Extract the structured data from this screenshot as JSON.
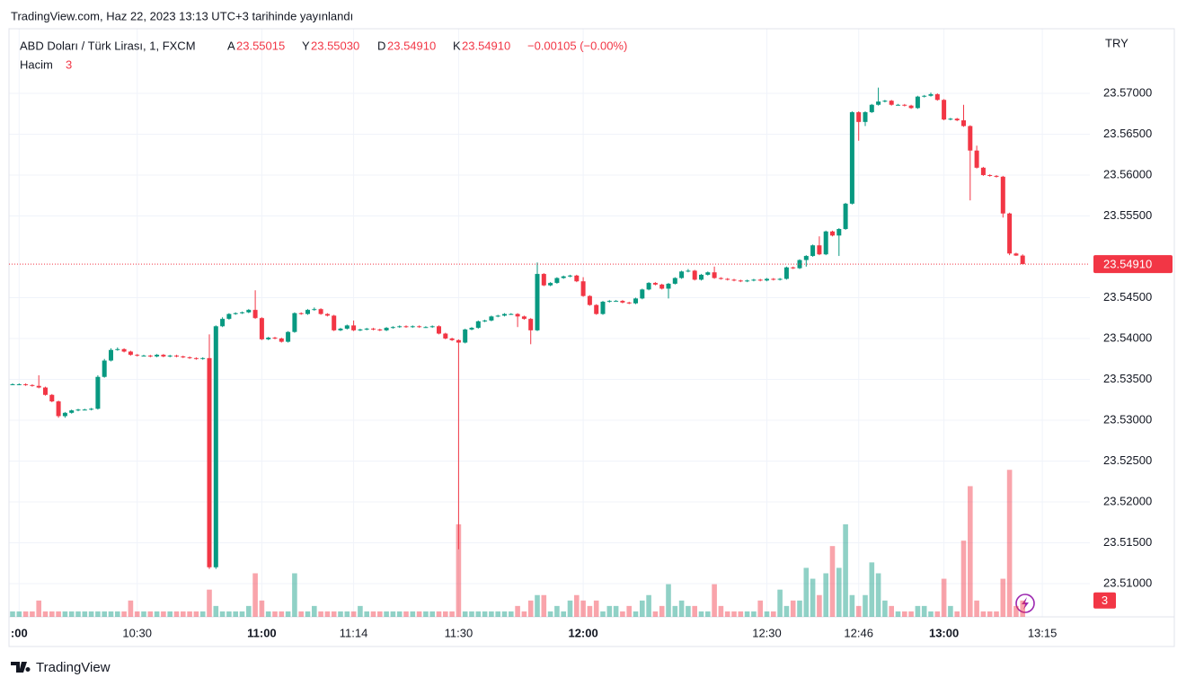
{
  "header": {
    "publish_note": "TradingView.com, Haz 22, 2023 13:13 UTC+3 tarihinde yayınlandı"
  },
  "legend": {
    "symbol": "ABD Doları / Türk Lirası, 1, FXCM",
    "open_label": "A",
    "open": "23.55015",
    "high_label": "Y",
    "high": "23.55030",
    "low_label": "D",
    "low": "23.54910",
    "close_label": "K",
    "close": "23.54910",
    "change": "−0.00105 (−0.00%)",
    "volume_label": "Hacim"
  },
  "footer": {
    "brand": "TradingView"
  },
  "chart_data": {
    "type": "candlestick",
    "currency": "TRY",
    "up_color": "#089981",
    "down_color": "#f23645",
    "grid": true,
    "ylim": [
      23.50593,
      23.57791
    ],
    "yticks": [
      {
        "value": 23.51,
        "label": "23.51000"
      },
      {
        "value": 23.515,
        "label": "23.51500"
      },
      {
        "value": 23.52,
        "label": "23.52000"
      },
      {
        "value": 23.525,
        "label": "23.52500"
      },
      {
        "value": 23.53,
        "label": "23.53000"
      },
      {
        "value": 23.535,
        "label": "23.53500"
      },
      {
        "value": 23.54,
        "label": "23.54000"
      },
      {
        "value": 23.545,
        "label": "23.54500"
      },
      {
        "value": 23.555,
        "label": "23.55500"
      },
      {
        "value": 23.56,
        "label": "23.56000"
      },
      {
        "value": 23.565,
        "label": "23.56500"
      },
      {
        "value": 23.57,
        "label": "23.57000"
      }
    ],
    "xticks": [
      {
        "value": 1,
        "label": ":00"
      },
      {
        "value": 19,
        "label": "10:30"
      },
      {
        "value": 38,
        "label": "11:00"
      },
      {
        "value": 52,
        "label": "11:14"
      },
      {
        "value": 68,
        "label": "11:30"
      },
      {
        "value": 87,
        "label": "12:00"
      },
      {
        "value": 115,
        "label": "12:30"
      },
      {
        "value": 129,
        "label": "12:46"
      },
      {
        "value": 142,
        "label": "13:00"
      },
      {
        "value": 157,
        "label": "13:15"
      }
    ],
    "last_price": {
      "value": 23.5491,
      "label": "23.54910"
    },
    "ohlc": [
      [
        23.5344,
        23.5345,
        23.5343,
        23.5344
      ],
      [
        23.5344,
        23.5345,
        23.5343,
        23.5344
      ],
      [
        23.5344,
        23.5345,
        23.5342,
        23.5343
      ],
      [
        23.5343,
        23.5344,
        23.5341,
        23.5342
      ],
      [
        23.5342,
        23.5355,
        23.5339,
        23.534
      ],
      [
        23.534,
        23.5341,
        23.533,
        23.5331
      ],
      [
        23.5331,
        23.5332,
        23.5322,
        23.5323
      ],
      [
        23.5323,
        23.5324,
        23.5303,
        23.5305
      ],
      [
        23.5305,
        23.531,
        23.5303,
        23.5309
      ],
      [
        23.5309,
        23.5313,
        23.5308,
        23.5312
      ],
      [
        23.5312,
        23.5314,
        23.5311,
        23.5313
      ],
      [
        23.5313,
        23.5314,
        23.5312,
        23.5313
      ],
      [
        23.5313,
        23.5315,
        23.5312,
        23.5314
      ],
      [
        23.5314,
        23.5355,
        23.5313,
        23.5353
      ],
      [
        23.5353,
        23.5375,
        23.5352,
        23.5373
      ],
      [
        23.5373,
        23.5388,
        23.5372,
        23.5386
      ],
      [
        23.5386,
        23.5389,
        23.5385,
        23.5387
      ],
      [
        23.5387,
        23.5388,
        23.5383,
        23.5384
      ],
      [
        23.5384,
        23.5385,
        23.5379,
        23.538
      ],
      [
        23.538,
        23.5381,
        23.5378,
        23.5379
      ],
      [
        23.5379,
        23.538,
        23.5378,
        23.5379
      ],
      [
        23.5379,
        23.538,
        23.5377,
        23.5378
      ],
      [
        23.5378,
        23.5381,
        23.5377,
        23.538
      ],
      [
        23.538,
        23.5381,
        23.5377,
        23.5378
      ],
      [
        23.5378,
        23.538,
        23.5377,
        23.5379
      ],
      [
        23.5379,
        23.538,
        23.5377,
        23.5378
      ],
      [
        23.5378,
        23.5379,
        23.5376,
        23.5377
      ],
      [
        23.5377,
        23.5378,
        23.5375,
        23.5376
      ],
      [
        23.5376,
        23.5377,
        23.5374,
        23.5375
      ],
      [
        23.5375,
        23.5377,
        23.5374,
        23.5376
      ],
      [
        23.5376,
        23.5405,
        23.5118,
        23.512
      ],
      [
        23.512,
        23.5416,
        23.5118,
        23.5415
      ],
      [
        23.5415,
        23.5426,
        23.5414,
        23.5424
      ],
      [
        23.5424,
        23.5431,
        23.5423,
        23.543
      ],
      [
        23.543,
        23.5432,
        23.5429,
        23.5431
      ],
      [
        23.5431,
        23.5433,
        23.543,
        23.5432
      ],
      [
        23.5432,
        23.5436,
        23.5431,
        23.5435
      ],
      [
        23.5435,
        23.5459,
        23.5424,
        23.5425
      ],
      [
        23.5425,
        23.5426,
        23.5398,
        23.5399
      ],
      [
        23.5399,
        23.5402,
        23.5398,
        23.5401
      ],
      [
        23.5401,
        23.5402,
        23.5399,
        23.54
      ],
      [
        23.54,
        23.5401,
        23.5395,
        23.5396
      ],
      [
        23.5396,
        23.5409,
        23.5395,
        23.5408
      ],
      [
        23.5408,
        23.5432,
        23.5407,
        23.5431
      ],
      [
        23.5431,
        23.5432,
        23.5429,
        23.543
      ],
      [
        23.543,
        23.5436,
        23.5429,
        23.5435
      ],
      [
        23.5435,
        23.5438,
        23.5434,
        23.5436
      ],
      [
        23.5436,
        23.5437,
        23.5429,
        23.543
      ],
      [
        23.543,
        23.5431,
        23.5427,
        23.5428
      ],
      [
        23.5428,
        23.5429,
        23.5409,
        23.541
      ],
      [
        23.541,
        23.5413,
        23.5409,
        23.5412
      ],
      [
        23.5412,
        23.5417,
        23.5411,
        23.5416
      ],
      [
        23.5416,
        23.5422,
        23.5409,
        23.541
      ],
      [
        23.541,
        23.5412,
        23.5409,
        23.5411
      ],
      [
        23.5411,
        23.5413,
        23.541,
        23.5412
      ],
      [
        23.5412,
        23.5413,
        23.541,
        23.5411
      ],
      [
        23.5411,
        23.5412,
        23.5409,
        23.541
      ],
      [
        23.541,
        23.5414,
        23.5409,
        23.5413
      ],
      [
        23.5413,
        23.5415,
        23.5412,
        23.5414
      ],
      [
        23.5414,
        23.5416,
        23.5413,
        23.5415
      ],
      [
        23.5415,
        23.5416,
        23.5413,
        23.5414
      ],
      [
        23.5414,
        23.5416,
        23.5413,
        23.5415
      ],
      [
        23.5415,
        23.5416,
        23.5413,
        23.5414
      ],
      [
        23.5414,
        23.5415,
        23.5413,
        23.5414
      ],
      [
        23.5414,
        23.5416,
        23.5413,
        23.5415
      ],
      [
        23.5415,
        23.5416,
        23.5405,
        23.5406
      ],
      [
        23.5406,
        23.5407,
        23.5399,
        23.54
      ],
      [
        23.54,
        23.5401,
        23.5397,
        23.5398
      ],
      [
        23.5398,
        23.5399,
        23.5142,
        23.5395
      ],
      [
        23.5395,
        23.5412,
        23.5394,
        23.5411
      ],
      [
        23.5411,
        23.5414,
        23.541,
        23.5413
      ],
      [
        23.5413,
        23.5422,
        23.5412,
        23.5421
      ],
      [
        23.5421,
        23.5423,
        23.542,
        23.5422
      ],
      [
        23.5422,
        23.5428,
        23.5421,
        23.5427
      ],
      [
        23.5427,
        23.5429,
        23.5426,
        23.5428
      ],
      [
        23.5428,
        23.5431,
        23.5427,
        23.543
      ],
      [
        23.543,
        23.5431,
        23.5429,
        23.543
      ],
      [
        23.543,
        23.5431,
        23.5414,
        23.5427
      ],
      [
        23.5427,
        23.5428,
        23.5423,
        23.5424
      ],
      [
        23.5424,
        23.5425,
        23.5393,
        23.541
      ],
      [
        23.541,
        23.5493,
        23.5409,
        23.5479
      ],
      [
        23.5479,
        23.548,
        23.5464,
        23.5465
      ],
      [
        23.5465,
        23.5469,
        23.5464,
        23.5468
      ],
      [
        23.5468,
        23.5475,
        23.5467,
        23.5474
      ],
      [
        23.5474,
        23.5477,
        23.5473,
        23.5476
      ],
      [
        23.5476,
        23.5478,
        23.5475,
        23.5477
      ],
      [
        23.5477,
        23.5478,
        23.5469,
        23.547
      ],
      [
        23.547,
        23.5475,
        23.5451,
        23.5452
      ],
      [
        23.5452,
        23.5453,
        23.544,
        23.5441
      ],
      [
        23.5441,
        23.5442,
        23.5429,
        23.543
      ],
      [
        23.543,
        23.5446,
        23.5429,
        23.5445
      ],
      [
        23.5445,
        23.5447,
        23.5444,
        23.5446
      ],
      [
        23.5446,
        23.5447,
        23.5445,
        23.5446
      ],
      [
        23.5446,
        23.5447,
        23.5443,
        23.5444
      ],
      [
        23.5444,
        23.5445,
        23.5442,
        23.5443
      ],
      [
        23.5443,
        23.545,
        23.5442,
        23.5449
      ],
      [
        23.5449,
        23.5461,
        23.5448,
        23.546
      ],
      [
        23.546,
        23.5469,
        23.5459,
        23.5468
      ],
      [
        23.5468,
        23.5469,
        23.5465,
        23.5466
      ],
      [
        23.5466,
        23.5467,
        23.546,
        23.5461
      ],
      [
        23.5461,
        23.5468,
        23.5449,
        23.5467
      ],
      [
        23.5467,
        23.5475,
        23.5466,
        23.5474
      ],
      [
        23.5474,
        23.5483,
        23.5473,
        23.5482
      ],
      [
        23.5482,
        23.5485,
        23.5481,
        23.5483
      ],
      [
        23.5483,
        23.5484,
        23.5471,
        23.5472
      ],
      [
        23.5472,
        23.5479,
        23.5471,
        23.5478
      ],
      [
        23.5478,
        23.5482,
        23.5477,
        23.5481
      ],
      [
        23.5481,
        23.5488,
        23.5473,
        23.5474
      ],
      [
        23.5474,
        23.5475,
        23.5472,
        23.5473
      ],
      [
        23.5473,
        23.5474,
        23.5471,
        23.5472
      ],
      [
        23.5472,
        23.5473,
        23.547,
        23.5471
      ],
      [
        23.5471,
        23.5472,
        23.5469,
        23.547
      ],
      [
        23.547,
        23.5472,
        23.5469,
        23.5471
      ],
      [
        23.5471,
        23.5473,
        23.547,
        23.5472
      ],
      [
        23.5472,
        23.5473,
        23.547,
        23.5471
      ],
      [
        23.5471,
        23.5474,
        23.547,
        23.5473
      ],
      [
        23.5473,
        23.5474,
        23.5471,
        23.5472
      ],
      [
        23.5472,
        23.5474,
        23.5471,
        23.5473
      ],
      [
        23.5473,
        23.5488,
        23.5472,
        23.5487
      ],
      [
        23.5487,
        23.5488,
        23.5485,
        23.5486
      ],
      [
        23.5486,
        23.5497,
        23.5485,
        23.5496
      ],
      [
        23.5496,
        23.5502,
        23.5488,
        23.5501
      ],
      [
        23.5501,
        23.5515,
        23.55,
        23.5514
      ],
      [
        23.5514,
        23.5525,
        23.5502,
        23.5503
      ],
      [
        23.5503,
        23.5532,
        23.5502,
        23.5531
      ],
      [
        23.5531,
        23.5532,
        23.5525,
        23.5526
      ],
      [
        23.5526,
        23.5535,
        23.5501,
        23.5534
      ],
      [
        23.5534,
        23.5566,
        23.5533,
        23.5565
      ],
      [
        23.5565,
        23.5678,
        23.5564,
        23.5677
      ],
      [
        23.5677,
        23.5678,
        23.5642,
        23.5665
      ],
      [
        23.5665,
        23.5678,
        23.566,
        23.5677
      ],
      [
        23.5677,
        23.5687,
        23.5676,
        23.5686
      ],
      [
        23.5686,
        23.5707,
        23.5685,
        23.569
      ],
      [
        23.569,
        23.5692,
        23.5689,
        23.5691
      ],
      [
        23.5691,
        23.5692,
        23.5685,
        23.5686
      ],
      [
        23.5686,
        23.5687,
        23.5685,
        23.5686
      ],
      [
        23.5686,
        23.5687,
        23.5684,
        23.5685
      ],
      [
        23.5685,
        23.5686,
        23.5681,
        23.5682
      ],
      [
        23.5682,
        23.5697,
        23.5681,
        23.5696
      ],
      [
        23.5696,
        23.5698,
        23.5695,
        23.5697
      ],
      [
        23.5697,
        23.5701,
        23.5696,
        23.5699
      ],
      [
        23.5699,
        23.57,
        23.5691,
        23.5692
      ],
      [
        23.5692,
        23.5693,
        23.5667,
        23.5668
      ],
      [
        23.5668,
        23.567,
        23.5667,
        23.5669
      ],
      [
        23.5669,
        23.567,
        23.5666,
        23.5667
      ],
      [
        23.5667,
        23.5686,
        23.5659,
        23.566
      ],
      [
        23.566,
        23.5661,
        23.5569,
        23.563
      ],
      [
        23.563,
        23.5636,
        23.5608,
        23.5609
      ],
      [
        23.5609,
        23.561,
        23.5599,
        23.56
      ],
      [
        23.56,
        23.5601,
        23.5598,
        23.5599
      ],
      [
        23.5599,
        23.56,
        23.5597,
        23.5598
      ],
      [
        23.5598,
        23.5599,
        23.5548,
        23.5553
      ],
      [
        23.5553,
        23.5554,
        23.5502,
        23.5504
      ],
      [
        23.5504,
        23.5505,
        23.5501,
        23.55015
      ],
      [
        23.55015,
        23.5503,
        23.5491,
        23.5491
      ]
    ],
    "volume": [
      1,
      1,
      1,
      1,
      3,
      1,
      1,
      1,
      1,
      1,
      1,
      1,
      1,
      1,
      1,
      1,
      1,
      1,
      3,
      1,
      1,
      1,
      1,
      1,
      1,
      1,
      1,
      1,
      1,
      1,
      5,
      2,
      1,
      1,
      1,
      1,
      2,
      8,
      3,
      1,
      1,
      1,
      1,
      8,
      1,
      1,
      2,
      1,
      1,
      1,
      1,
      1,
      1,
      2,
      1,
      1,
      1,
      1,
      1,
      1,
      1,
      1,
      1,
      1,
      1,
      1,
      1,
      1,
      17,
      1,
      1,
      1,
      1,
      1,
      1,
      1,
      1,
      2,
      1,
      3,
      4,
      4,
      1,
      2,
      1,
      3,
      4,
      3,
      2,
      3,
      1,
      2,
      2,
      1,
      2,
      1,
      3,
      4,
      1,
      2,
      6,
      2,
      3,
      2,
      2,
      1,
      1,
      6,
      2,
      1,
      1,
      1,
      1,
      1,
      3,
      1,
      1,
      5,
      2,
      3,
      3,
      9,
      7,
      4,
      8,
      13,
      9,
      17,
      4,
      2,
      4,
      10,
      8,
      3,
      2,
      1,
      1,
      1,
      2,
      2,
      1,
      1,
      7,
      2,
      1,
      14,
      24,
      3,
      1,
      1,
      1,
      7,
      27,
      2,
      3
    ]
  }
}
